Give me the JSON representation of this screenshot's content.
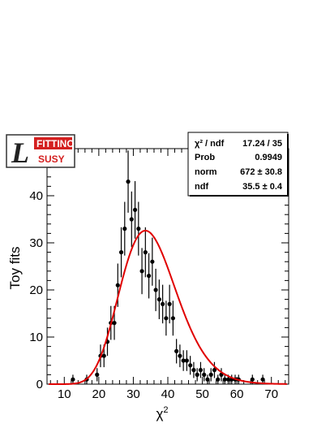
{
  "chart_data": {
    "type": "scatter",
    "xlabel": "χ",
    "xlabel_sup": "2",
    "ylabel": "Toy fits",
    "xlim": [
      5,
      75
    ],
    "ylim": [
      0,
      50
    ],
    "x_ticks": [
      10,
      20,
      30,
      40,
      50,
      60,
      70
    ],
    "y_ticks": [
      0,
      10,
      20,
      30,
      40
    ],
    "grid": false,
    "series": [
      {
        "type": "points_with_errors",
        "x": [
          12.5,
          16.5,
          19.5,
          20.5,
          21.5,
          22.5,
          23.5,
          24.5,
          25.5,
          26.5,
          27.5,
          28.5,
          29.5,
          30.5,
          31.5,
          32.5,
          33.5,
          34.5,
          35.5,
          36.5,
          37.5,
          38.5,
          39.5,
          40.5,
          41.5,
          42.5,
          43.5,
          44.5,
          45.5,
          46.5,
          47.5,
          48.5,
          49.5,
          50.5,
          51.5,
          52.5,
          53.5,
          54.5,
          55.5,
          56.5,
          57.5,
          58.5,
          59.5,
          60.5,
          64.5,
          67.5
        ],
        "y": [
          1,
          1,
          2,
          6,
          6,
          9,
          13,
          13,
          21,
          28,
          33,
          43,
          35,
          37,
          33,
          24,
          28,
          23,
          26,
          20,
          18,
          17,
          14,
          17,
          14,
          7,
          6,
          5,
          5,
          4,
          3,
          2,
          3,
          2,
          1,
          2,
          3,
          1,
          2,
          1,
          1,
          1,
          1,
          1,
          1,
          1
        ],
        "yerr": [
          1,
          1,
          1.4,
          2.4,
          2.4,
          3,
          3.6,
          3.6,
          4.6,
          5.3,
          5.7,
          6.6,
          5.9,
          6.1,
          5.7,
          4.9,
          5.3,
          4.8,
          5.1,
          4.5,
          4.2,
          4.1,
          3.7,
          4.1,
          3.7,
          2.6,
          2.4,
          2.2,
          2.2,
          2,
          1.7,
          1.4,
          1.7,
          1.4,
          1,
          1.4,
          1.7,
          1,
          1.4,
          1,
          1,
          1,
          1,
          1,
          1,
          1
        ],
        "color": "#000000"
      },
      {
        "type": "line",
        "description": "fit curve",
        "fit": {
          "norm": 672,
          "ndf": 35.5
        },
        "color": "#e00000"
      }
    ]
  },
  "stats_box": {
    "rows": [
      {
        "label": "χ² / ndf",
        "value": "17.24 / 35"
      },
      {
        "label": "Prob",
        "value": "0.9949"
      },
      {
        "label": "norm",
        "value": "672 ± 30.8"
      },
      {
        "label": "ndf",
        "value": "35.5 ± 0.4"
      }
    ]
  },
  "logo": {
    "letter": "L",
    "top_text": "FITTINO",
    "bottom_text": "SUSY",
    "accent_color": "#d42020"
  },
  "colors": {
    "fit_line": "#e00000",
    "points": "#000000",
    "frame": "#000000"
  }
}
